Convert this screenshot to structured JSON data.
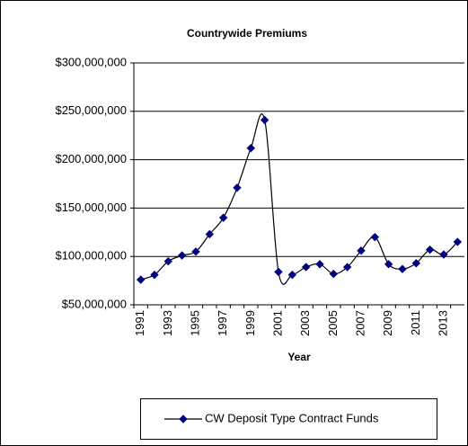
{
  "chart_data": {
    "type": "line",
    "title": "Countrywide Premiums",
    "x_label": "Year",
    "categories": [
      "1991",
      null,
      "1993",
      null,
      "1995",
      null,
      "1997",
      null,
      "1999",
      null,
      "2001",
      null,
      "2003",
      null,
      "2005",
      null,
      "2007",
      null,
      "2009",
      null,
      "2011",
      null,
      "2013",
      null
    ],
    "series": [
      {
        "name": "CW Deposit Type Contract Funds",
        "color": "#000080",
        "values": [
          76000000,
          81000000,
          95000000,
          101000000,
          105000000,
          123000000,
          140000000,
          171000000,
          212000000,
          241000000,
          84000000,
          81000000,
          89000000,
          92000000,
          82000000,
          89000000,
          106000000,
          120000000,
          92000000,
          87000000,
          93000000,
          107000000,
          102000000,
          115000000
        ]
      }
    ],
    "ylim": [
      50000000,
      300000000
    ],
    "yticks": [
      {
        "value": 50000000,
        "label": "$50,000,000"
      },
      {
        "value": 100000000,
        "label": "$100,000,000"
      },
      {
        "value": 150000000,
        "label": "$150,000,000"
      },
      {
        "value": 200000000,
        "label": "$200,000,000"
      },
      {
        "value": 250000000,
        "label": "$250,000,000"
      },
      {
        "value": 300000000,
        "label": "$300,000,000"
      }
    ],
    "grid": true,
    "legend": "bottom"
  }
}
